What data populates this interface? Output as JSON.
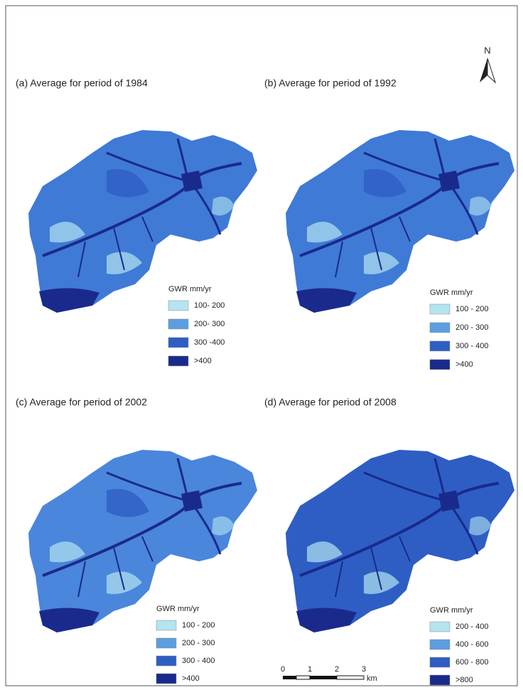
{
  "panels": [
    {
      "title": "(a) Average for period of 1984",
      "legend": {
        "title": "GWR mm/yr",
        "items": [
          {
            "label": "100- 200",
            "color": "#b4e4f0"
          },
          {
            "label": "200- 300",
            "color": "#5c9ee0"
          },
          {
            "label": "300 -400",
            "color": "#2e5ec4"
          },
          {
            "label": ">400",
            "color": "#1a2a8c"
          }
        ]
      }
    },
    {
      "title": "(b) Average for period of 1992",
      "legend": {
        "title": "GWR mm/yr",
        "items": [
          {
            "label": "100 - 200",
            "color": "#b4e4f0"
          },
          {
            "label": "200 - 300",
            "color": "#5c9ee0"
          },
          {
            "label": "300 - 400",
            "color": "#2e5ec4"
          },
          {
            "label": ">400",
            "color": "#1a2a8c"
          }
        ]
      }
    },
    {
      "title": "(c) Average for period of 2002",
      "legend": {
        "title": "GWR mm/yr",
        "items": [
          {
            "label": "100 - 200",
            "color": "#b4e4f0"
          },
          {
            "label": "200 - 300",
            "color": "#5c9ee0"
          },
          {
            "label": "300 - 400",
            "color": "#2e5ec4"
          },
          {
            "label": ">400",
            "color": "#1a2a8c"
          }
        ]
      }
    },
    {
      "title": "(d) Average for period of 2008",
      "legend": {
        "title": "GWR mm/yr",
        "items": [
          {
            "label": "200 - 400",
            "color": "#b4e4f0"
          },
          {
            "label": "400 - 600",
            "color": "#5c9ee0"
          },
          {
            "label": "600 - 800",
            "color": "#2e5ec4"
          },
          {
            "label": ">800",
            "color": "#1a2a8c"
          }
        ]
      }
    }
  ],
  "north": "N",
  "scale_bar": {
    "labels": [
      0,
      1,
      2,
      3
    ],
    "unit": "km"
  }
}
